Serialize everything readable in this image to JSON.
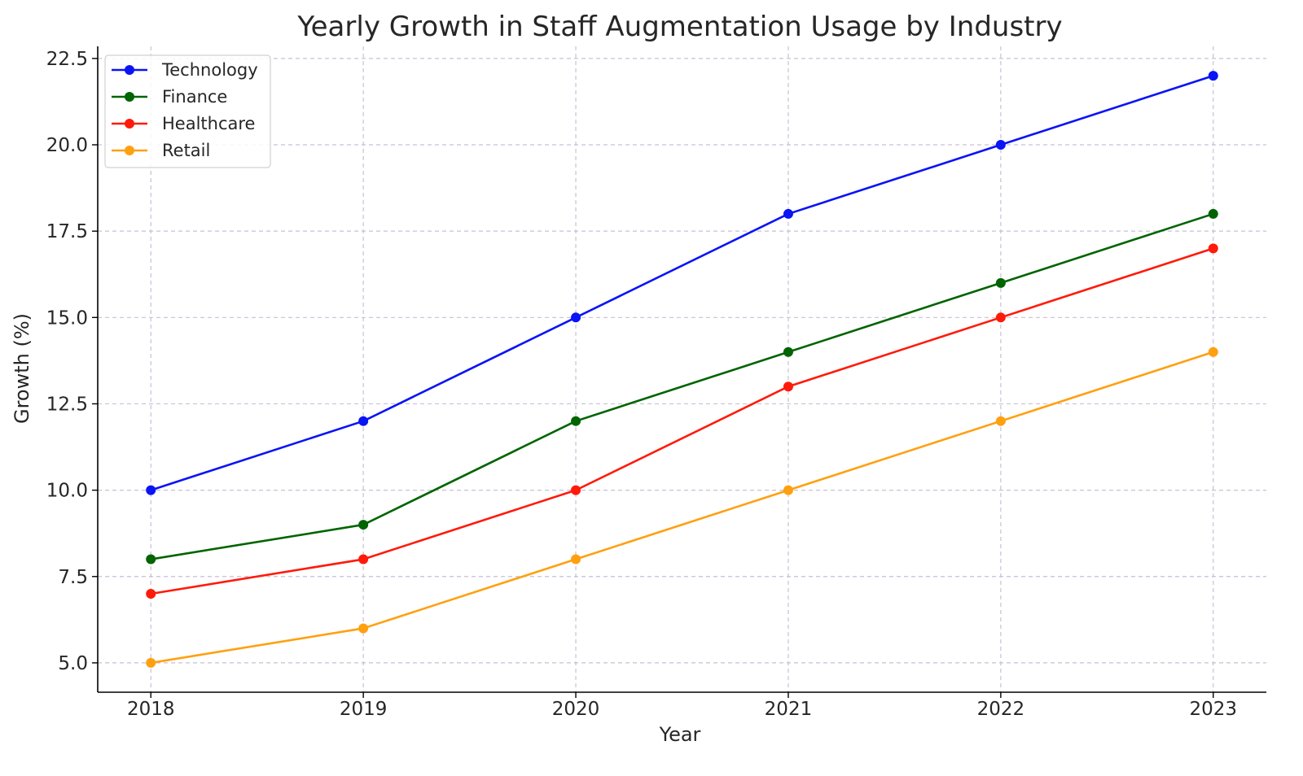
{
  "chart_data": {
    "type": "line",
    "title": "Yearly Growth in Staff Augmentation Usage by Industry",
    "xlabel": "Year",
    "ylabel": "Growth (%)",
    "x": [
      2018,
      2019,
      2020,
      2021,
      2022,
      2023
    ],
    "x_tick_labels": [
      "2018",
      "2019",
      "2020",
      "2021",
      "2022",
      "2023"
    ],
    "y_ticks": [
      5.0,
      7.5,
      10.0,
      12.5,
      15.0,
      17.5,
      20.0,
      22.5
    ],
    "y_tick_labels": [
      "5.0",
      "7.5",
      "10.0",
      "12.5",
      "15.0",
      "17.5",
      "20.0",
      "22.5"
    ],
    "xlim": [
      2017.75,
      2023.25
    ],
    "ylim": [
      4.15,
      22.85
    ],
    "grid": true,
    "legend_position": "top-left",
    "series": [
      {
        "name": "Technology",
        "color": "#0a14f5",
        "values": [
          10,
          12,
          15,
          18,
          20,
          22
        ]
      },
      {
        "name": "Finance",
        "color": "#006400",
        "values": [
          8,
          9,
          12,
          14,
          16,
          18
        ]
      },
      {
        "name": "Healthcare",
        "color": "#ff1a0a",
        "values": [
          7,
          8,
          10,
          13,
          15,
          17
        ]
      },
      {
        "name": "Retail",
        "color": "#ffa010",
        "values": [
          5,
          6,
          8,
          10,
          12,
          14
        ]
      }
    ]
  }
}
